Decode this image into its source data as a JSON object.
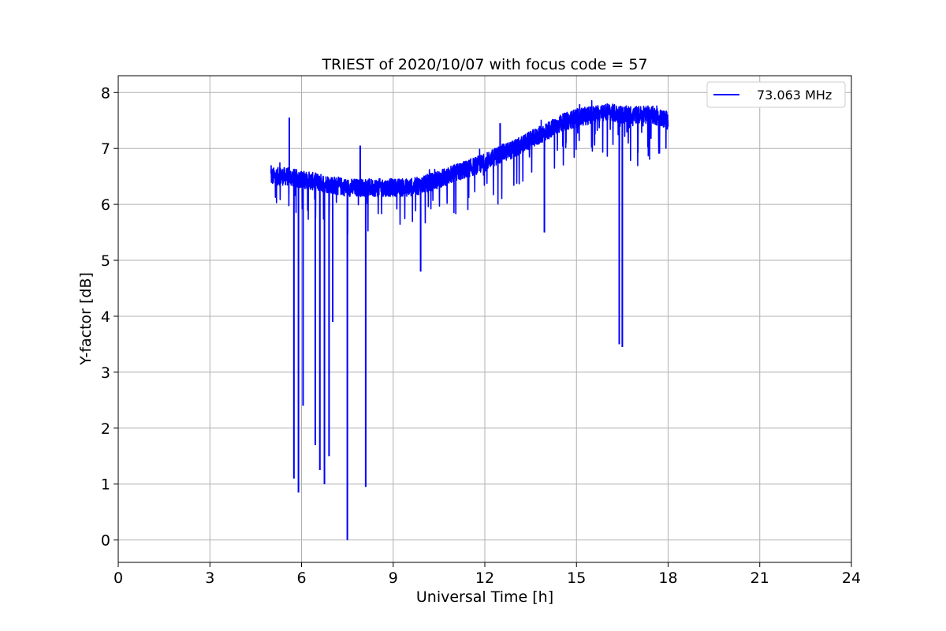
{
  "chart_data": {
    "type": "line",
    "title": "TRIEST of 2020/10/07 with focus code = 57",
    "xlabel": "Universal Time [h]",
    "ylabel": "Y-factor [dB]",
    "xlim": [
      0,
      24
    ],
    "ylim": [
      -0.4,
      8.3
    ],
    "xticks": [
      0,
      3,
      6,
      9,
      12,
      15,
      18,
      21,
      24
    ],
    "yticks": [
      0,
      1,
      2,
      3,
      4,
      5,
      6,
      7,
      8
    ],
    "grid": true,
    "legend_position": "top-right",
    "series": [
      {
        "name": "73.063 MHz",
        "color": "#0000ff",
        "x": [
          5.0,
          5.5,
          6.0,
          6.5,
          7.0,
          7.5,
          8.0,
          8.5,
          9.0,
          9.5,
          10.0,
          10.5,
          11.0,
          11.5,
          12.0,
          12.5,
          13.0,
          13.5,
          14.0,
          14.5,
          15.0,
          15.5,
          16.0,
          16.5,
          17.0,
          17.5,
          18.0
        ],
        "y": [
          6.5,
          6.5,
          6.45,
          6.4,
          6.35,
          6.3,
          6.3,
          6.3,
          6.3,
          6.3,
          6.35,
          6.45,
          6.55,
          6.65,
          6.75,
          6.9,
          7.0,
          7.15,
          7.3,
          7.45,
          7.55,
          7.6,
          7.65,
          7.6,
          7.6,
          7.6,
          7.5
        ],
        "spikes": [
          {
            "x": 5.6,
            "y": 7.55
          },
          {
            "x": 5.75,
            "y": 1.1
          },
          {
            "x": 5.9,
            "y": 0.85
          },
          {
            "x": 6.05,
            "y": 2.4
          },
          {
            "x": 6.45,
            "y": 1.7
          },
          {
            "x": 6.6,
            "y": 1.25
          },
          {
            "x": 6.75,
            "y": 1.0
          },
          {
            "x": 6.9,
            "y": 1.5
          },
          {
            "x": 7.02,
            "y": 3.9
          },
          {
            "x": 7.5,
            "y": 0.0
          },
          {
            "x": 7.92,
            "y": 7.05
          },
          {
            "x": 8.1,
            "y": 0.95
          },
          {
            "x": 9.9,
            "y": 4.8
          },
          {
            "x": 12.5,
            "y": 7.45
          },
          {
            "x": 13.95,
            "y": 5.5
          },
          {
            "x": 16.4,
            "y": 3.5
          },
          {
            "x": 16.5,
            "y": 3.45
          }
        ]
      }
    ]
  }
}
